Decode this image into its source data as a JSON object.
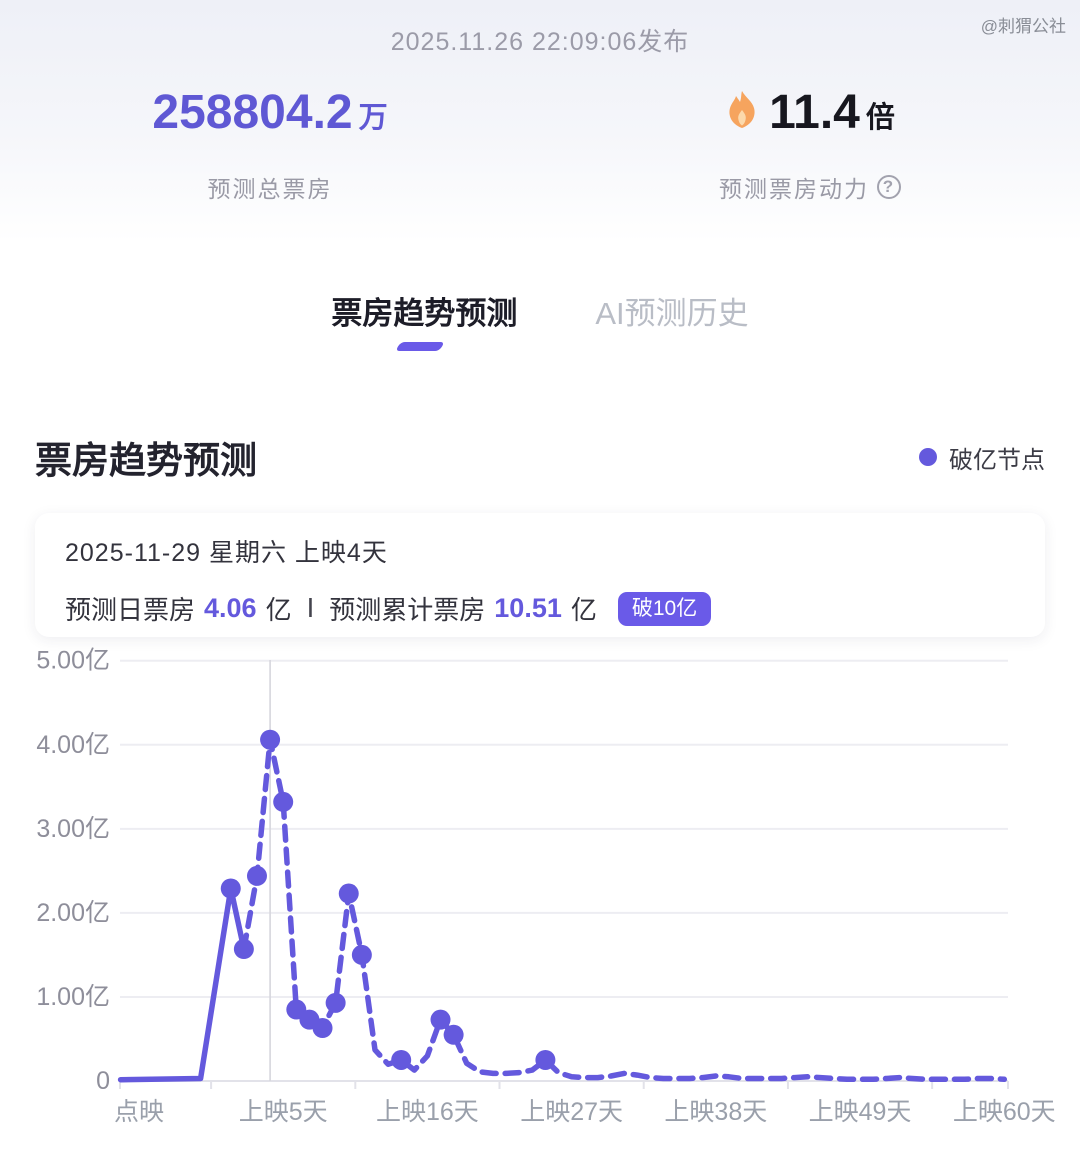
{
  "header": {
    "publish_time": "2025.11.26 22:09:06发布",
    "watermark": "@刺猬公社",
    "total_value": "258804.2",
    "total_unit": "万",
    "total_label": "预测总票房",
    "momentum_value": "11.4",
    "momentum_unit": "倍",
    "momentum_label": "预测票房动力",
    "flame_icon": "flame",
    "help_icon": "?"
  },
  "tabs": [
    {
      "label": "票房趋势预测",
      "active": true
    },
    {
      "label": "AI预测历史",
      "active": false
    }
  ],
  "section": {
    "title": "票房趋势预测",
    "legend_label": "破亿节点",
    "legend_color": "#6459dd"
  },
  "info_card": {
    "date_line": "2025-11-29  星期六  上映4天",
    "daily_label": "预测日票房",
    "daily_value": "4.06",
    "daily_unit": "亿",
    "separator": "Ⅰ",
    "cume_label": "预测累计票房",
    "cume_value": "10.51",
    "cume_unit": "亿",
    "badge": "破10亿"
  },
  "colors": {
    "accent_purple": "#6459dd",
    "badge_purple": "#6a5ae8",
    "grid": "#ededf2",
    "axis": "#e2e2e9",
    "tick_text": "#8e8e9a",
    "xtick_text": "#9aa0ab",
    "highlight_line": "#d6d6dd"
  },
  "chart_data": {
    "type": "line",
    "title": "票房趋势预测",
    "ylabel": "",
    "xlabel": "",
    "unit": "亿",
    "ylim": [
      0,
      5
    ],
    "grid": true,
    "legend_position": "top-right",
    "yticks": [
      {
        "v": 0,
        "label": "0"
      },
      {
        "v": 1,
        "label": "1.00亿"
      },
      {
        "v": 2,
        "label": "2.00亿"
      },
      {
        "v": 3,
        "label": "3.00亿"
      },
      {
        "v": 4,
        "label": "4.00亿"
      },
      {
        "v": 5,
        "label": "5.00亿"
      }
    ],
    "xticks": [
      {
        "day": -6,
        "label": "点映"
      },
      {
        "day": 5,
        "label": "上映5天"
      },
      {
        "day": 16,
        "label": "上映16天"
      },
      {
        "day": 27,
        "label": "上映27天"
      },
      {
        "day": 38,
        "label": "上映38天"
      },
      {
        "day": 49,
        "label": "上映49天"
      },
      {
        "day": 60,
        "label": "上映60天"
      }
    ],
    "solid_until_day": 2,
    "highlight_day": 4,
    "series": [
      {
        "name": "预测日票房",
        "points": [
          {
            "day": -7.4,
            "value": 0.015
          },
          {
            "day": -1.3,
            "value": 0.03
          },
          {
            "day": 1,
            "value": 2.29,
            "milestone": true
          },
          {
            "day": 2,
            "value": 1.57,
            "milestone": true
          },
          {
            "day": 3,
            "value": 2.44,
            "milestone": true
          },
          {
            "day": 4,
            "value": 4.06,
            "milestone": true
          },
          {
            "day": 5,
            "value": 3.32,
            "milestone": true
          },
          {
            "day": 6,
            "value": 0.85,
            "milestone": true
          },
          {
            "day": 7,
            "value": 0.73,
            "milestone": true
          },
          {
            "day": 8,
            "value": 0.63,
            "milestone": true
          },
          {
            "day": 9,
            "value": 0.93,
            "milestone": true
          },
          {
            "day": 10,
            "value": 2.23,
            "milestone": true
          },
          {
            "day": 11,
            "value": 1.5,
            "milestone": true
          },
          {
            "day": 12,
            "value": 0.37
          },
          {
            "day": 13,
            "value": 0.2
          },
          {
            "day": 14,
            "value": 0.25,
            "milestone": true
          },
          {
            "day": 15,
            "value": 0.13
          },
          {
            "day": 16,
            "value": 0.3
          },
          {
            "day": 17,
            "value": 0.73,
            "milestone": true
          },
          {
            "day": 18,
            "value": 0.55,
            "milestone": true
          },
          {
            "day": 19,
            "value": 0.21
          },
          {
            "day": 20,
            "value": 0.11
          },
          {
            "day": 21,
            "value": 0.09
          },
          {
            "day": 22,
            "value": 0.09
          },
          {
            "day": 23,
            "value": 0.1
          },
          {
            "day": 24,
            "value": 0.13
          },
          {
            "day": 25,
            "value": 0.25,
            "milestone": true
          },
          {
            "day": 26,
            "value": 0.1
          },
          {
            "day": 27,
            "value": 0.05
          },
          {
            "day": 28,
            "value": 0.04
          },
          {
            "day": 29,
            "value": 0.04
          },
          {
            "day": 30,
            "value": 0.06
          },
          {
            "day": 31,
            "value": 0.09
          },
          {
            "day": 32,
            "value": 0.07
          },
          {
            "day": 33,
            "value": 0.04
          },
          {
            "day": 34,
            "value": 0.03
          },
          {
            "day": 35,
            "value": 0.03
          },
          {
            "day": 36,
            "value": 0.03
          },
          {
            "day": 37,
            "value": 0.04
          },
          {
            "day": 38,
            "value": 0.06
          },
          {
            "day": 39,
            "value": 0.05
          },
          {
            "day": 40,
            "value": 0.03
          },
          {
            "day": 41,
            "value": 0.03
          },
          {
            "day": 42,
            "value": 0.03
          },
          {
            "day": 43,
            "value": 0.03
          },
          {
            "day": 44,
            "value": 0.04
          },
          {
            "day": 45,
            "value": 0.05
          },
          {
            "day": 46,
            "value": 0.04
          },
          {
            "day": 47,
            "value": 0.03
          },
          {
            "day": 48,
            "value": 0.02
          },
          {
            "day": 49,
            "value": 0.02
          },
          {
            "day": 50,
            "value": 0.02
          },
          {
            "day": 51,
            "value": 0.03
          },
          {
            "day": 52,
            "value": 0.04
          },
          {
            "day": 53,
            "value": 0.03
          },
          {
            "day": 54,
            "value": 0.02
          },
          {
            "day": 55,
            "value": 0.02
          },
          {
            "day": 56,
            "value": 0.02
          },
          {
            "day": 57,
            "value": 0.02
          },
          {
            "day": 58,
            "value": 0.03
          },
          {
            "day": 59,
            "value": 0.03
          },
          {
            "day": 60,
            "value": 0.02
          }
        ]
      }
    ]
  }
}
